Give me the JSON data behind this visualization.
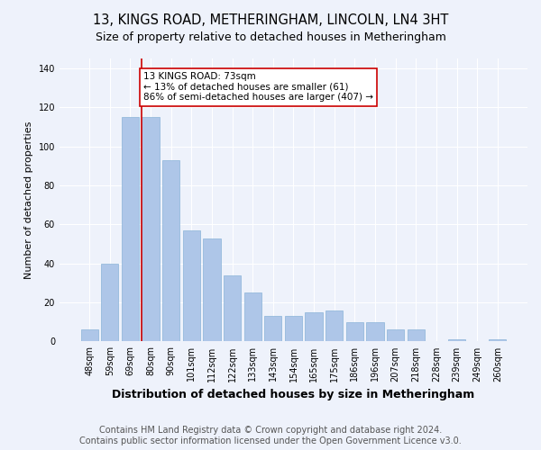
{
  "title": "13, KINGS ROAD, METHERINGHAM, LINCOLN, LN4 3HT",
  "subtitle": "Size of property relative to detached houses in Metheringham",
  "xlabel": "Distribution of detached houses by size in Metheringham",
  "ylabel": "Number of detached properties",
  "categories": [
    "48sqm",
    "59sqm",
    "69sqm",
    "80sqm",
    "90sqm",
    "101sqm",
    "112sqm",
    "122sqm",
    "133sqm",
    "143sqm",
    "154sqm",
    "165sqm",
    "175sqm",
    "186sqm",
    "196sqm",
    "207sqm",
    "218sqm",
    "228sqm",
    "239sqm",
    "249sqm",
    "260sqm"
  ],
  "values": [
    6,
    40,
    115,
    115,
    93,
    57,
    53,
    34,
    25,
    13,
    13,
    15,
    16,
    10,
    10,
    6,
    6,
    0,
    1,
    0,
    1
  ],
  "bar_color": "#aec6e8",
  "bar_edge_color": "#8ab4d8",
  "highlight_x": "80sqm",
  "highlight_color": "#cc0000",
  "annotation_text": "13 KINGS ROAD: 73sqm\n← 13% of detached houses are smaller (61)\n86% of semi-detached houses are larger (407) →",
  "annotation_box_color": "#ffffff",
  "annotation_box_edge_color": "#cc0000",
  "footer_text": "Contains HM Land Registry data © Crown copyright and database right 2024.\nContains public sector information licensed under the Open Government Licence v3.0.",
  "background_color": "#eef2fb",
  "ylim": [
    0,
    145
  ],
  "yticks": [
    0,
    20,
    40,
    60,
    80,
    100,
    120,
    140
  ],
  "title_fontsize": 10.5,
  "subtitle_fontsize": 9,
  "xlabel_fontsize": 9,
  "ylabel_fontsize": 8,
  "tick_fontsize": 7,
  "footer_fontsize": 7,
  "annotation_fontsize": 7.5
}
